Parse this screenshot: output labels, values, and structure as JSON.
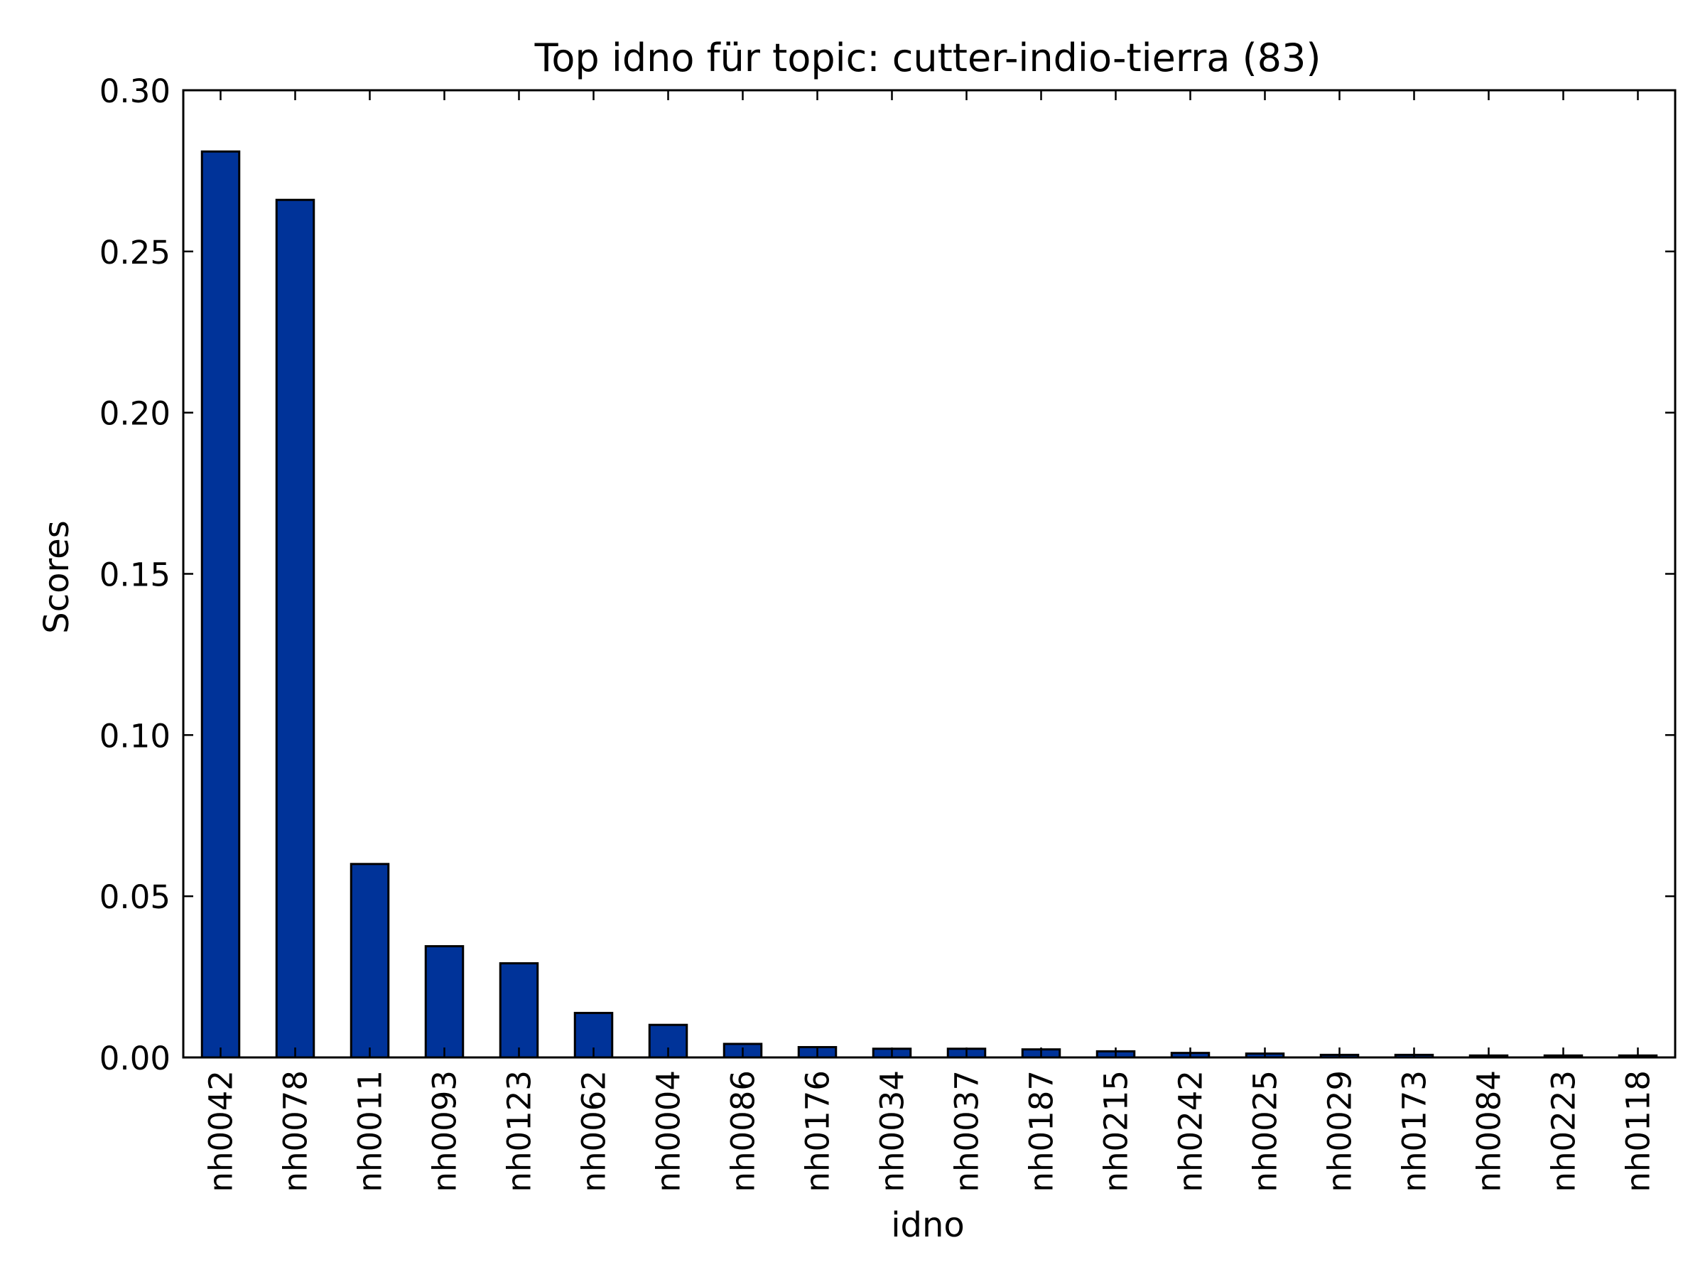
{
  "chart_data": {
    "type": "bar",
    "title": "Top idno für topic: cutter-indio-tierra (83)",
    "xlabel": "idno",
    "ylabel": "Scores",
    "categories": [
      "nh0042",
      "nh0078",
      "nh0011",
      "nh0093",
      "nh0123",
      "nh0062",
      "nh0004",
      "nh0086",
      "nh0176",
      "nh0034",
      "nh0037",
      "nh0187",
      "nh0215",
      "nh0242",
      "nh0025",
      "nh0029",
      "nh0173",
      "nh0084",
      "nh0223",
      "nh0118"
    ],
    "values": [
      0.281,
      0.266,
      0.06,
      0.0345,
      0.0292,
      0.0138,
      0.0101,
      0.0042,
      0.0032,
      0.0027,
      0.0027,
      0.0025,
      0.0019,
      0.0014,
      0.0012,
      0.0008,
      0.0008,
      0.0006,
      0.0006,
      0.0006
    ],
    "ylim": [
      0,
      0.3
    ],
    "yticks": [
      "0.00",
      "0.05",
      "0.10",
      "0.15",
      "0.20",
      "0.25",
      "0.30"
    ],
    "grid": false,
    "bar_color": "#003399",
    "edge_color": "#000000"
  }
}
